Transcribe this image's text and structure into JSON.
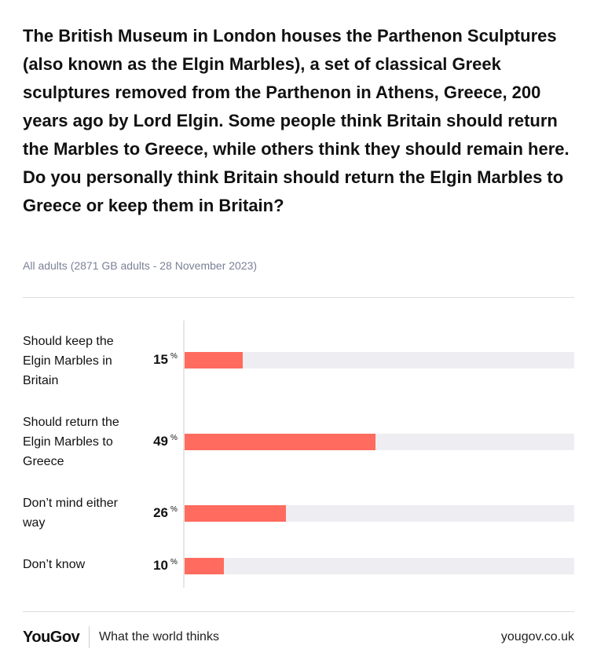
{
  "question": "The British Museum in London houses the Parthenon Sculptures (also known as the Elgin Marbles), a set of classical Greek sculptures removed from the Parthenon in Athens, Greece, 200 years ago by Lord Elgin. Some people think Britain should return the Marbles to Greece, while others think they should remain here. Do you personally think Britain should return the Elgin Marbles to Greece or keep them in Britain?",
  "subtitle": "All adults (2871 GB adults - 28 November 2023)",
  "footer": {
    "brand": "YouGov",
    "tagline": "What the world thinks",
    "url": "yougov.co.uk"
  },
  "colors": {
    "bar": "#ff6b5e",
    "track": "#eeeef2"
  },
  "chart_data": {
    "type": "bar",
    "orientation": "horizontal",
    "categories": [
      "Should keep the Elgin Marbles in Britain",
      "Should return the Elgin Marbles to Greece",
      "Don’t mind either way",
      "Don’t know"
    ],
    "values": [
      15,
      49,
      26,
      10
    ],
    "value_suffix": "%",
    "xlim": [
      0,
      100
    ]
  }
}
